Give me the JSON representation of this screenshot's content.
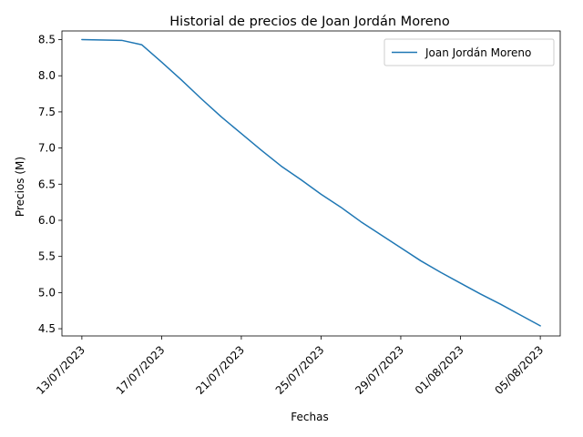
{
  "chart_data": {
    "type": "line",
    "title": "Historial de precios de Joan Jordán Moreno",
    "xlabel": "Fechas",
    "ylabel": "Precios (M)",
    "x_ticks": [
      "13/07/2023",
      "17/07/2023",
      "21/07/2023",
      "25/07/2023",
      "29/07/2023",
      "01/08/2023",
      "05/08/2023"
    ],
    "y_ticks": [
      "4.5",
      "5.0",
      "5.5",
      "6.0",
      "6.5",
      "7.0",
      "7.5",
      "8.0",
      "8.5"
    ],
    "ylim": [
      4.4,
      8.62
    ],
    "xlim": [
      "12/07/2023",
      "06/08/2023"
    ],
    "legend": {
      "position": "top-right"
    },
    "grid": false,
    "series": [
      {
        "name": "Joan Jordán Moreno",
        "color": "#1f77b4",
        "x": [
          "13/07/2023",
          "15/07/2023",
          "16/07/2023",
          "17/07/2023",
          "18/07/2023",
          "19/07/2023",
          "20/07/2023",
          "21/07/2023",
          "22/07/2023",
          "23/07/2023",
          "24/07/2023",
          "25/07/2023",
          "26/07/2023",
          "27/07/2023",
          "28/07/2023",
          "29/07/2023",
          "30/07/2023",
          "31/07/2023",
          "01/08/2023",
          "02/08/2023",
          "03/08/2023",
          "04/08/2023",
          "05/08/2023"
        ],
        "values": [
          8.5,
          8.49,
          8.43,
          8.19,
          7.94,
          7.68,
          7.43,
          7.2,
          6.97,
          6.75,
          6.56,
          6.36,
          6.18,
          5.98,
          5.8,
          5.62,
          5.44,
          5.28,
          5.13,
          4.98,
          4.84,
          4.69,
          4.54
        ]
      }
    ]
  }
}
